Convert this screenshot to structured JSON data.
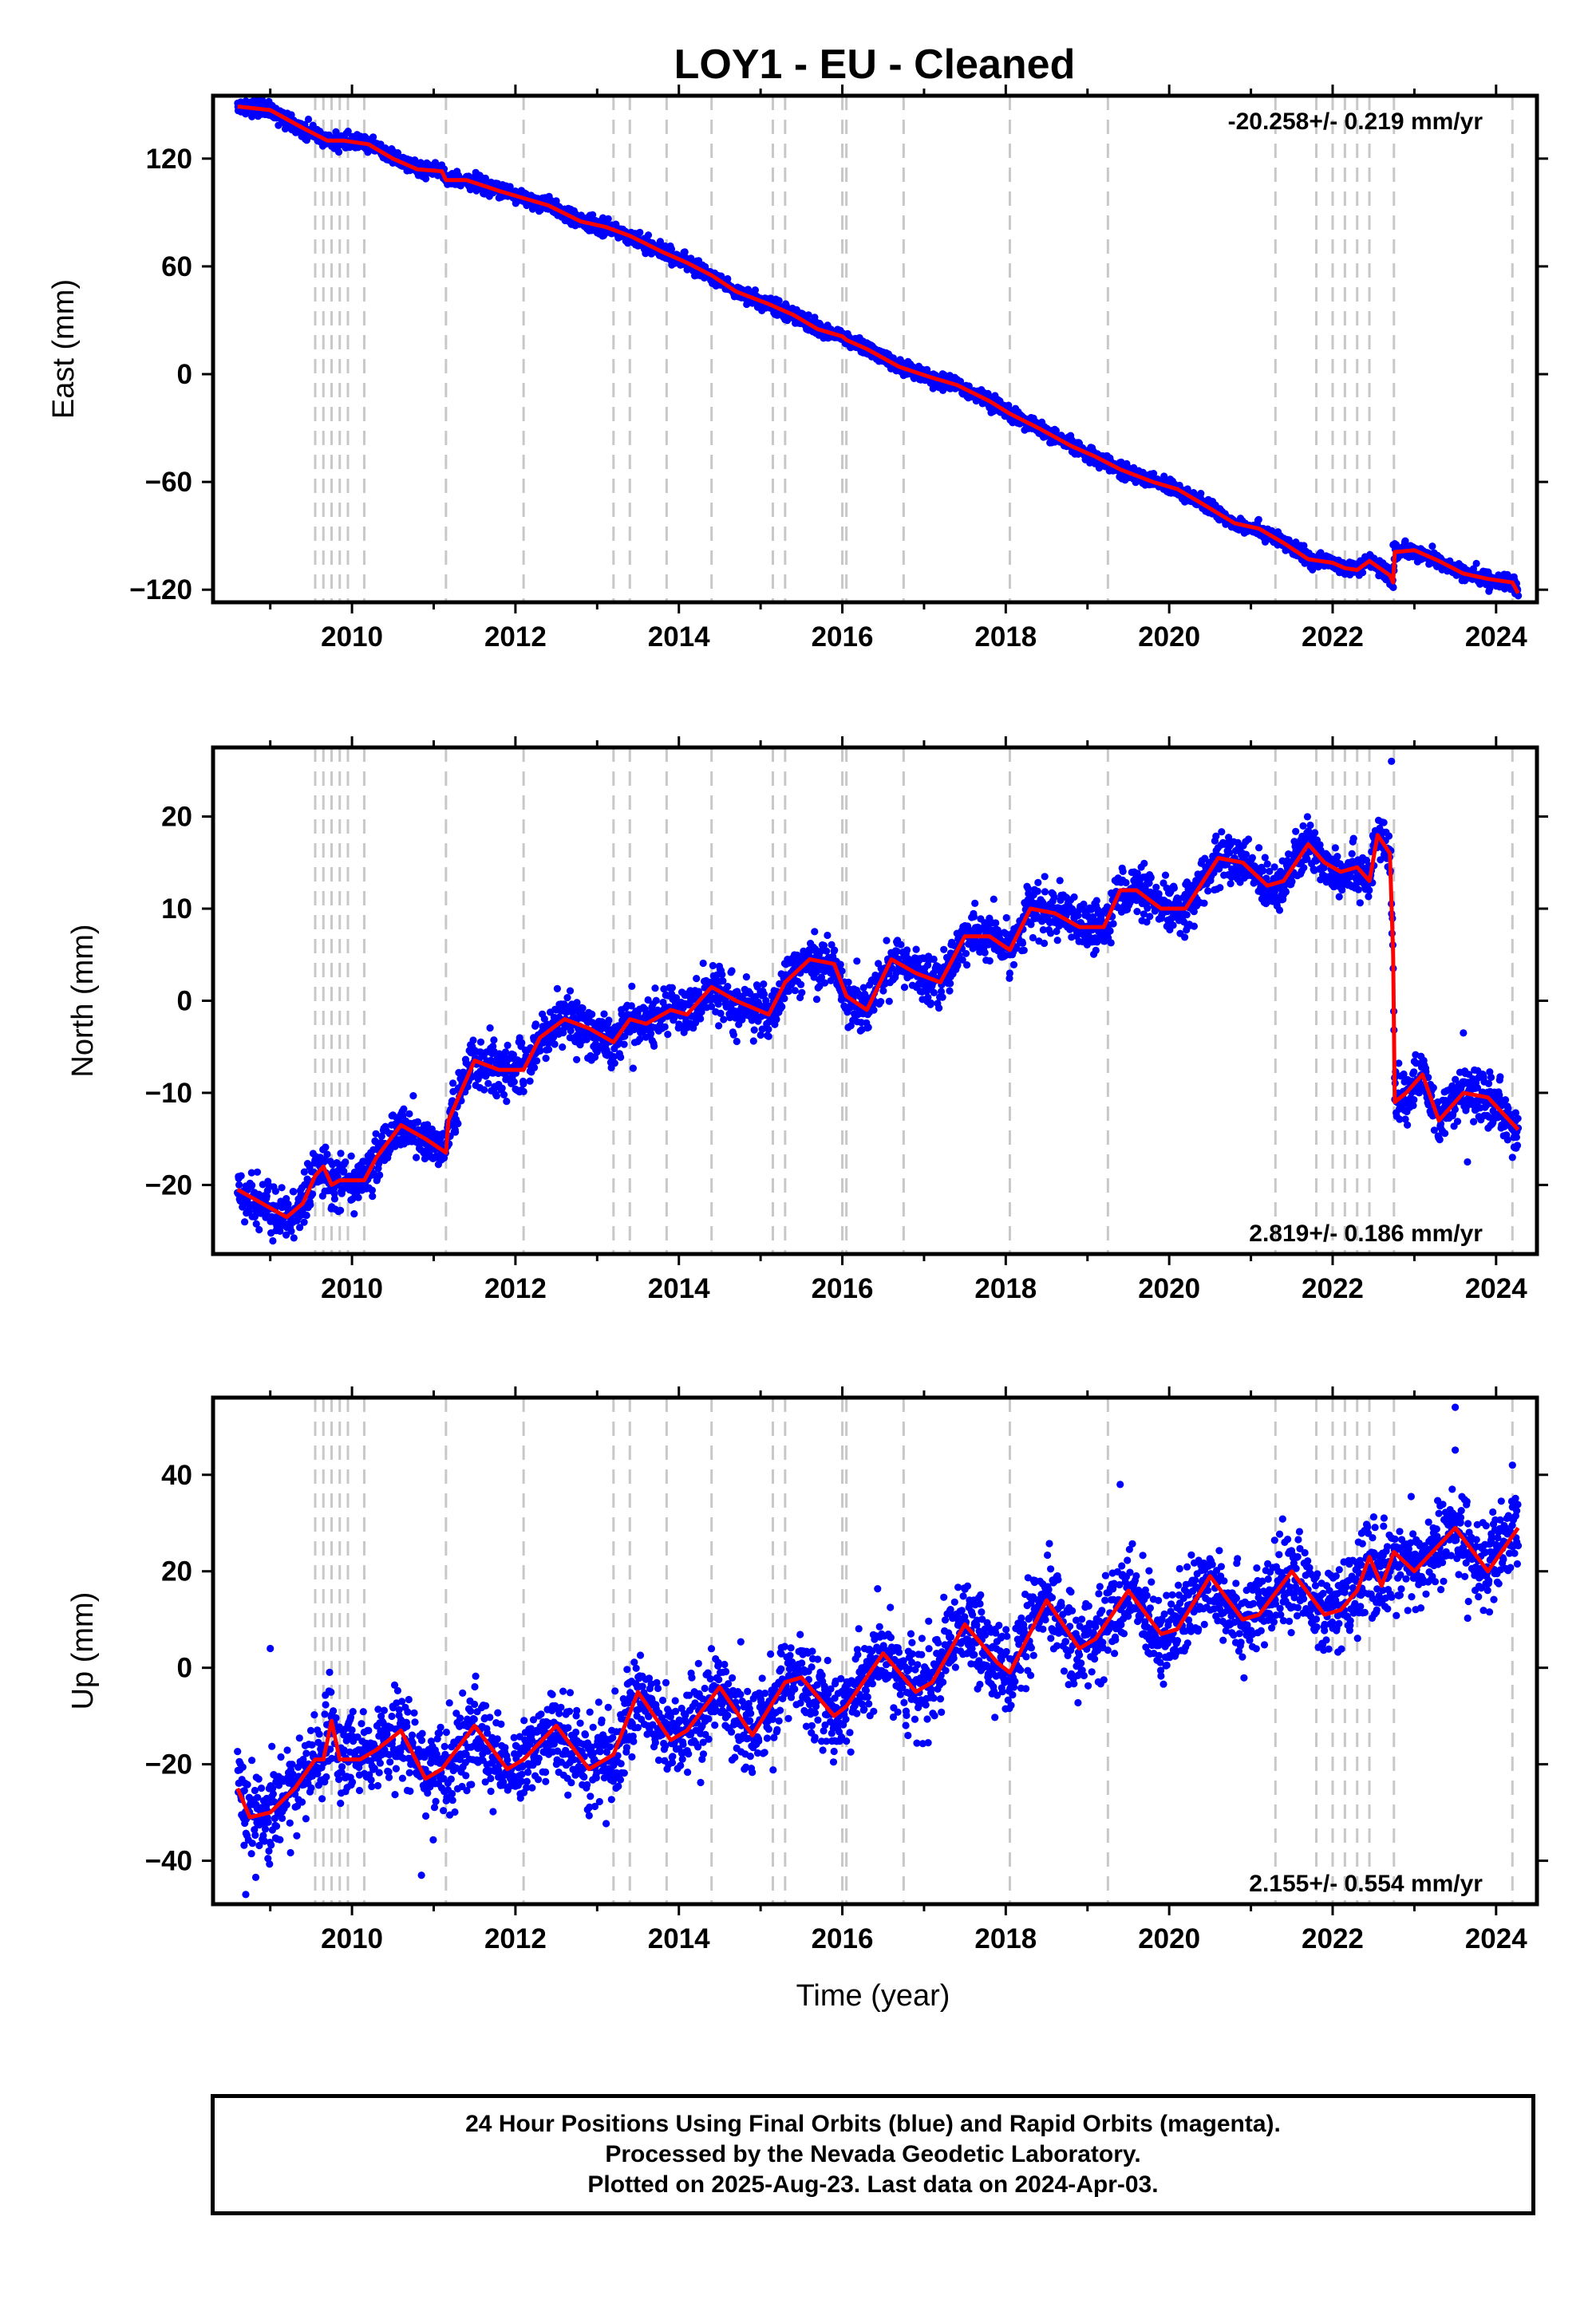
{
  "figure": {
    "title": "LOY1  - EU - Cleaned",
    "xlabel": "Time (year)"
  },
  "footer": {
    "line1": "24 Hour Positions Using Final Orbits (blue) and Rapid Orbits (magenta).",
    "line2": "Processed by the Nevada Geodetic Laboratory.",
    "line3": "Plotted on 2025-Aug-23. Last data on 2024-Apr-03."
  },
  "colors": {
    "final_orbits": "#0000ff",
    "model_fit": "#ff0000",
    "event_lines": "#c8c8c8",
    "axes": "#000000"
  },
  "chart_data": [
    {
      "type": "scatter",
      "id": "east",
      "ylabel": "East (mm)",
      "rate_label": "-20.258+/- 0.219 mm/yr",
      "rate_position": "top-right",
      "xlim": [
        2008.3,
        2024.5
      ],
      "ylim": [
        -127,
        155
      ],
      "xticks": [
        2010,
        2012,
        2014,
        2016,
        2018,
        2020,
        2022,
        2024
      ],
      "yticks": [
        120,
        60,
        0,
        -60,
        -120
      ],
      "ytick_labels": [
        "120",
        "60",
        "0",
        "−60",
        "−120"
      ],
      "grid": false,
      "event_lines": [
        2009.55,
        2009.65,
        2009.75,
        2009.85,
        2009.95,
        2010.15,
        2011.15,
        2012.1,
        2013.2,
        2013.4,
        2013.85,
        2014.4,
        2015.15,
        2015.3,
        2016.0,
        2016.05,
        2016.75,
        2018.05,
        2019.25,
        2021.3,
        2021.8,
        2022.0,
        2022.15,
        2022.3,
        2022.45,
        2022.75,
        2024.2
      ],
      "fit_series": {
        "name": "",
        "x": [
          2008.6,
          2009.0,
          2009.4,
          2009.7,
          2009.9,
          2010.2,
          2010.5,
          2010.8,
          2011.1,
          2011.15,
          2011.4,
          2011.8,
          2012.1,
          2012.4,
          2012.8,
          2013.1,
          2013.4,
          2013.8,
          2014.1,
          2014.4,
          2014.7,
          2015.1,
          2015.4,
          2015.7,
          2016.0,
          2016.05,
          2016.3,
          2016.7,
          2017.1,
          2017.4,
          2017.8,
          2018.05,
          2018.4,
          2018.8,
          2019.1,
          2019.4,
          2019.8,
          2020.1,
          2020.4,
          2020.8,
          2021.1,
          2021.4,
          2021.7,
          2022.0,
          2022.15,
          2022.3,
          2022.45,
          2022.7,
          2022.74,
          2022.76,
          2023.0,
          2023.3,
          2023.6,
          2023.9,
          2024.2,
          2024.27
        ],
        "y": [
          149,
          147,
          137,
          130,
          130,
          128,
          120,
          114,
          113,
          108,
          108,
          102,
          98,
          94,
          85,
          82,
          77,
          68,
          62,
          55,
          46,
          39,
          33,
          25,
          21,
          19,
          14,
          4,
          -2,
          -6,
          -15,
          -22,
          -30,
          -40,
          -46,
          -53,
          -60,
          -64,
          -72,
          -83,
          -86,
          -94,
          -103,
          -105,
          -108,
          -109,
          -104,
          -112,
          -116,
          -99,
          -98,
          -104,
          -111,
          -114,
          -116,
          -122
        ]
      },
      "data_points": {
        "name": "",
        "x_start": 2008.6,
        "x_end": 2024.27,
        "count": 3200,
        "scatter_sd": 2.0,
        "outliers_near": [
          [
            2022.74,
            -95
          ],
          [
            2022.78,
            -97
          ],
          [
            2022.7,
            -117
          ]
        ]
      }
    },
    {
      "type": "scatter",
      "id": "north",
      "ylabel": "North (mm)",
      "rate_label": "2.819+/- 0.186 mm/yr",
      "rate_position": "bottom-right",
      "xlim": [
        2008.3,
        2024.5
      ],
      "ylim": [
        -27.5,
        27.5
      ],
      "xticks": [
        2010,
        2012,
        2014,
        2016,
        2018,
        2020,
        2022,
        2024
      ],
      "yticks": [
        20,
        10,
        0,
        -10,
        -20
      ],
      "ytick_labels": [
        "20",
        "10",
        "0",
        "−10",
        "−20"
      ],
      "grid": false,
      "event_lines": [
        2009.55,
        2009.65,
        2009.75,
        2009.85,
        2009.95,
        2010.15,
        2011.15,
        2012.1,
        2013.2,
        2013.4,
        2013.85,
        2014.4,
        2015.15,
        2015.3,
        2016.0,
        2016.05,
        2016.75,
        2018.05,
        2019.25,
        2021.3,
        2021.8,
        2022.0,
        2022.15,
        2022.3,
        2022.45,
        2022.75,
        2024.2
      ],
      "fit_series": {
        "name": "",
        "x": [
          2008.6,
          2008.9,
          2009.2,
          2009.4,
          2009.55,
          2009.65,
          2009.75,
          2009.85,
          2009.95,
          2010.15,
          2010.3,
          2010.6,
          2010.9,
          2011.15,
          2011.18,
          2011.5,
          2011.8,
          2012.1,
          2012.3,
          2012.6,
          2012.9,
          2013.2,
          2013.4,
          2013.6,
          2013.9,
          2014.1,
          2014.4,
          2014.7,
          2015.1,
          2015.3,
          2015.6,
          2015.9,
          2016.05,
          2016.3,
          2016.6,
          2016.9,
          2017.2,
          2017.5,
          2017.8,
          2018.05,
          2018.3,
          2018.6,
          2018.9,
          2019.2,
          2019.4,
          2019.6,
          2019.9,
          2020.2,
          2020.6,
          2020.9,
          2021.2,
          2021.4,
          2021.7,
          2021.9,
          2022.1,
          2022.3,
          2022.45,
          2022.55,
          2022.7,
          2022.74,
          2022.76,
          2022.9,
          2023.1,
          2023.3,
          2023.6,
          2023.9,
          2024.27
        ],
        "y": [
          -20.5,
          -22,
          -23.5,
          -22,
          -19,
          -18,
          -20,
          -19.5,
          -19.5,
          -19.5,
          -17,
          -13.5,
          -15,
          -16.5,
          -13,
          -6.5,
          -7.5,
          -7.5,
          -4,
          -2,
          -3,
          -4.5,
          -2,
          -2.5,
          -1,
          -1.5,
          1.5,
          0,
          -1.5,
          2,
          4.5,
          4,
          0.5,
          -1,
          4.5,
          3,
          2,
          7,
          7,
          5.5,
          10,
          9.5,
          8,
          8,
          12,
          12,
          10,
          10,
          15.5,
          15,
          12.5,
          13,
          17,
          15,
          14,
          14.5,
          13,
          18,
          16,
          5,
          -11,
          -10,
          -8,
          -13,
          -10,
          -10.5,
          -14
        ]
      },
      "data_points": {
        "name": "",
        "x_start": 2008.6,
        "x_end": 2024.27,
        "count": 3200,
        "scatter_sd": 1.3,
        "outliers_near": [
          [
            2022.72,
            26
          ],
          [
            2023.6,
            -3.5
          ],
          [
            2023.65,
            -17.5
          ]
        ]
      }
    },
    {
      "type": "scatter",
      "id": "up",
      "ylabel": "Up (mm)",
      "rate_label": "2.155+/- 0.554 mm/yr",
      "rate_position": "bottom-right",
      "xlim": [
        2008.3,
        2024.5
      ],
      "ylim": [
        -49,
        56
      ],
      "xticks": [
        2010,
        2012,
        2014,
        2016,
        2018,
        2020,
        2022,
        2024
      ],
      "yticks": [
        40,
        20,
        0,
        -20,
        -40
      ],
      "ytick_labels": [
        "40",
        "20",
        "0",
        "−20",
        "−40"
      ],
      "grid": false,
      "event_lines": [
        2009.55,
        2009.65,
        2009.75,
        2009.85,
        2009.95,
        2010.15,
        2011.15,
        2012.1,
        2013.2,
        2013.4,
        2013.85,
        2014.4,
        2015.15,
        2015.3,
        2016.0,
        2016.05,
        2016.75,
        2018.05,
        2019.25,
        2021.3,
        2021.8,
        2022.0,
        2022.15,
        2022.3,
        2022.45,
        2022.75,
        2024.2
      ],
      "fit_series": {
        "name": "",
        "x": [
          2008.6,
          2008.75,
          2009.0,
          2009.3,
          2009.55,
          2009.65,
          2009.75,
          2009.85,
          2010.1,
          2010.3,
          2010.6,
          2010.9,
          2011.1,
          2011.5,
          2011.9,
          2012.1,
          2012.5,
          2012.9,
          2013.2,
          2013.5,
          2013.9,
          2014.1,
          2014.5,
          2014.9,
          2015.3,
          2015.5,
          2015.9,
          2016.05,
          2016.5,
          2016.9,
          2017.1,
          2017.5,
          2017.9,
          2018.05,
          2018.5,
          2018.9,
          2019.1,
          2019.5,
          2019.9,
          2020.1,
          2020.5,
          2020.9,
          2021.1,
          2021.5,
          2021.9,
          2022.1,
          2022.3,
          2022.45,
          2022.6,
          2022.75,
          2023.0,
          2023.5,
          2023.9,
          2024.27
        ],
        "y": [
          -25,
          -31,
          -30,
          -25,
          -19,
          -19,
          -11,
          -19,
          -19,
          -17,
          -13,
          -23,
          -21,
          -12,
          -21,
          -19,
          -12,
          -21,
          -18,
          -5,
          -15,
          -13,
          -4,
          -14,
          -3,
          -2,
          -10,
          -8,
          3,
          -5,
          -3,
          9,
          1,
          -1,
          14,
          4,
          6,
          16,
          7,
          8,
          19,
          10,
          11,
          20,
          11,
          12,
          16,
          23,
          17,
          24,
          20,
          29,
          20,
          29
        ]
      },
      "data_points": {
        "name": "",
        "x_start": 2008.6,
        "x_end": 2024.27,
        "count": 3200,
        "scatter_sd": 4.5,
        "outliers_near": [
          [
            2008.7,
            -47
          ],
          [
            2009.0,
            4
          ],
          [
            2010.85,
            -43
          ],
          [
            2023.5,
            54
          ],
          [
            2024.2,
            42
          ],
          [
            2019.4,
            38
          ]
        ]
      }
    }
  ]
}
